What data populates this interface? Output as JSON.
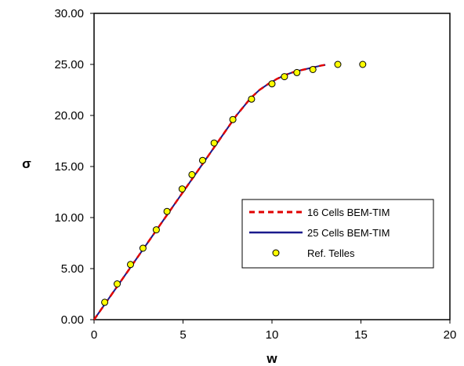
{
  "chart_data": {
    "type": "line",
    "title": "",
    "xlabel": "w",
    "ylabel": "σ",
    "xlim": [
      0,
      20
    ],
    "ylim": [
      0,
      30
    ],
    "xticks": [
      "0",
      "5",
      "10",
      "15",
      "20"
    ],
    "yticks": [
      "0.00",
      "5.00",
      "10.00",
      "15.00",
      "20.00",
      "25.00",
      "30.00"
    ],
    "grid": false,
    "legend_position": "center-right",
    "series": [
      {
        "name": "16 Cells BEM-TIM",
        "style": "dashed",
        "color": "#e00000",
        "x": [
          0,
          1,
          2,
          3,
          4,
          5,
          6,
          7,
          8,
          8.8,
          9.3,
          9.8,
          10.3,
          10.8,
          11.3,
          11.8,
          12.3,
          12.8,
          13
        ],
        "y": [
          0,
          2.5,
          5.0,
          7.5,
          10.0,
          12.5,
          15.0,
          17.5,
          20.0,
          21.7,
          22.5,
          23.1,
          23.6,
          24.0,
          24.3,
          24.5,
          24.7,
          24.9,
          24.95
        ]
      },
      {
        "name": "25 Cells BEM-TIM",
        "style": "solid",
        "color": "#1a1a8c",
        "x": [
          0,
          1,
          2,
          3,
          4,
          5,
          6,
          7,
          8,
          8.8,
          9.3,
          9.8,
          10.3,
          10.8,
          11.3,
          11.8,
          12.3,
          12.8,
          13
        ],
        "y": [
          0,
          2.5,
          5.0,
          7.5,
          10.0,
          12.5,
          15.0,
          17.5,
          20.0,
          21.7,
          22.5,
          23.1,
          23.6,
          24.0,
          24.3,
          24.5,
          24.7,
          24.9,
          24.95
        ]
      },
      {
        "name": "Ref. Telles",
        "style": "markers",
        "color": "#ffff00",
        "x": [
          0.6,
          1.3,
          2.05,
          2.75,
          3.5,
          4.1,
          4.95,
          5.5,
          6.1,
          6.75,
          7.8,
          8.85,
          10.0,
          10.7,
          11.4,
          12.3,
          13.7,
          15.1
        ],
        "y": [
          1.7,
          3.5,
          5.4,
          7.0,
          8.8,
          10.6,
          12.8,
          14.2,
          15.6,
          17.3,
          19.6,
          21.6,
          23.1,
          23.8,
          24.2,
          24.5,
          25.0,
          25.0
        ]
      }
    ]
  }
}
